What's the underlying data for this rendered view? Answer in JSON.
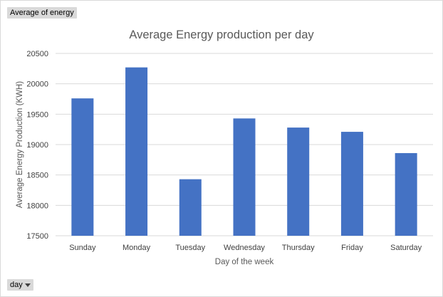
{
  "pivot_fields": {
    "values_field": "Average of energy",
    "axis_field": "day"
  },
  "chart_data": {
    "type": "bar",
    "title": "Average Energy production per day",
    "xlabel": "Day of the week",
    "ylabel": "Average Energy Production (KWH)",
    "categories": [
      "Sunday",
      "Monday",
      "Tuesday",
      "Wednesday",
      "Thursday",
      "Friday",
      "Saturday"
    ],
    "values": [
      19760,
      20270,
      18430,
      19430,
      19280,
      19210,
      18860
    ],
    "ylim": [
      17500,
      20500
    ],
    "yticks": [
      17500,
      18000,
      18500,
      19000,
      19500,
      20000,
      20500
    ],
    "grid": true,
    "bar_color": "#4472c4",
    "grid_color": "#d9d9d9"
  }
}
